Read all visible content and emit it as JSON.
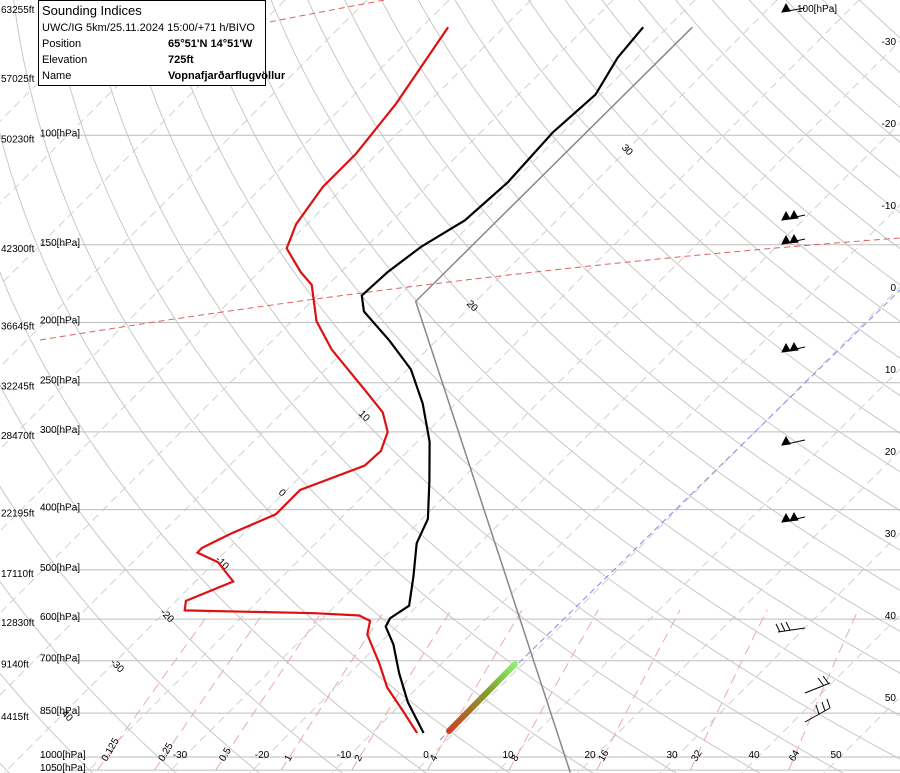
{
  "chart_data": {
    "type": "skewt",
    "title": "Sounding Indices",
    "info": [
      {
        "label": "UWC/IG 5km/25.11.2024 15:00/+71 h/BIVO"
      },
      {
        "label": "Position",
        "value": "65°51'N 14°51'W"
      },
      {
        "label": "Elevation",
        "value": "725ft"
      },
      {
        "label": "Name",
        "value": "Vopnafjarðarflugvöllur"
      }
    ],
    "wind_label": "100[hPa]",
    "xticks": [
      -30,
      -20,
      -10,
      0,
      10,
      20,
      30,
      40,
      50
    ],
    "pressure_ticks": [
      {
        "value": 100,
        "label": "100[hPa]"
      },
      {
        "value": 150,
        "label": "150[hPa]"
      },
      {
        "value": 200,
        "label": "200[hPa]"
      },
      {
        "value": 250,
        "label": "250[hPa]"
      },
      {
        "value": 300,
        "label": "300[hPa]"
      },
      {
        "value": 400,
        "label": "400[hPa]"
      },
      {
        "value": 500,
        "label": "500[hPa]"
      },
      {
        "value": 600,
        "label": "600[hPa]"
      },
      {
        "value": 700,
        "label": "700[hPa]"
      },
      {
        "value": 850,
        "label": "850[hPa]"
      },
      {
        "value": 1000,
        "label": "1000[hPa]"
      },
      {
        "value": 1050,
        "label": "1050[hPa]"
      }
    ],
    "altitude_ticks": [
      {
        "value": 63255,
        "label": "63255ft",
        "pressure": 62
      },
      {
        "value": 57025,
        "label": "57025ft",
        "pressure": 80
      },
      {
        "value": 50230,
        "label": "50230ft",
        "pressure": 100
      },
      {
        "value": 42300,
        "label": "42300ft",
        "pressure": 150
      },
      {
        "value": 36645,
        "label": "36645ft",
        "pressure": 200
      },
      {
        "value": 32245,
        "label": "32245ft",
        "pressure": 250
      },
      {
        "value": 28470,
        "label": "28470ft",
        "pressure": 300
      },
      {
        "value": 22195,
        "label": "22195ft",
        "pressure": 400
      },
      {
        "value": 17110,
        "label": "17110ft",
        "pressure": 500
      },
      {
        "value": 12830,
        "label": "12830ft",
        "pressure": 600
      },
      {
        "value": 9140,
        "label": "9140ft",
        "pressure": 700
      },
      {
        "value": 4415,
        "label": "4415ft",
        "pressure": 850
      }
    ],
    "mixing_ratio_ticks": [
      0.125,
      0.25,
      0.5,
      1,
      2,
      4,
      8,
      16,
      32,
      64
    ],
    "adiabat_labels": [
      40,
      -30,
      -20,
      -10,
      0,
      10,
      20,
      30
    ],
    "series": [
      {
        "color": "#000000",
        "pressure": [
          915,
          816,
          733,
          659,
          617,
          598,
          571,
          513,
          453,
          414,
          359,
          311,
          270,
          238,
          214,
          192,
          181,
          166,
          151,
          137,
          119,
          99,
          86,
          75,
          67
        ],
        "values": [
          -3.7,
          -9.4,
          -14.0,
          -18.2,
          -21.3,
          -21.8,
          -21.0,
          -24.0,
          -27.7,
          -29.3,
          -33.8,
          -38.5,
          -44.0,
          -49.6,
          -55.7,
          -62.4,
          -64.6,
          -64.3,
          -63.3,
          -61.2,
          -60.6,
          -61.2,
          -60.6,
          -62.4,
          -63.0
        ]
      },
      {
        "color": "#dd1111",
        "pressure": [
          915,
          845,
          773,
          707,
          635,
          604,
          592,
          587,
          581,
          561,
          522,
          486,
          469,
          461,
          437,
          407,
          372,
          340,
          322,
          300,
          279,
          256,
          221,
          199,
          174,
          166,
          152,
          139,
          121,
          107,
          89,
          67
        ],
        "values": [
          -4.5,
          -8.8,
          -13.7,
          -17.6,
          -22.6,
          -23.9,
          -25.9,
          -31.6,
          -47.8,
          -48.8,
          -45.4,
          -49.6,
          -53.3,
          -53.3,
          -51.5,
          -48.4,
          -48.4,
          -43.5,
          -43.3,
          -44.8,
          -47.8,
          -52.9,
          -61.7,
          -67.0,
          -72.0,
          -74.9,
          -79.5,
          -81.3,
          -82.6,
          -82.6,
          -83.8,
          -86.8
        ]
      },
      {
        "color": "#888888",
        "pressure": [
          1059,
          185,
          67
        ],
        "values": [
          19.0,
          -57.3,
          -57.0
        ]
      }
    ]
  }
}
